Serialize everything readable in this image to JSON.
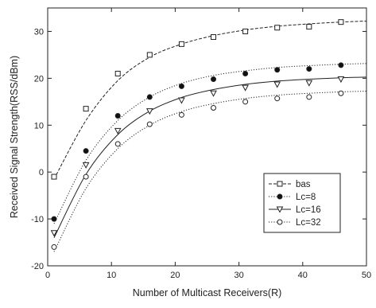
{
  "chart_data": {
    "type": "line",
    "xlabel": "Number of Multicast Receivers(R)",
    "ylabel": "Received Signal Strength(RSS/dBm)",
    "xlim": [
      0,
      50
    ],
    "ylim": [
      -20,
      35
    ],
    "xticks": [
      0,
      10,
      20,
      30,
      40,
      50
    ],
    "yticks": [
      -20,
      -10,
      0,
      10,
      20,
      30
    ],
    "grid": false,
    "legend_position": "right-center",
    "series": [
      {
        "name": "bas",
        "marker": "open-square",
        "line_style": "dashed",
        "x": [
          1,
          6,
          11,
          16,
          21,
          26,
          31,
          36,
          41,
          46
        ],
        "y": [
          -1,
          13.5,
          21,
          25,
          27.3,
          28.8,
          30,
          30.8,
          31,
          32
        ],
        "fit": [
          -1.5,
          11,
          19.5,
          24.5,
          27.3,
          29.1,
          30.3,
          31.1,
          31.6,
          32
        ]
      },
      {
        "name": "Lc=8",
        "marker": "filled-circle",
        "line_style": "dotted",
        "x": [
          1,
          6,
          11,
          16,
          21,
          26,
          31,
          36,
          41,
          46
        ],
        "y": [
          -10,
          4.5,
          12,
          16,
          18.3,
          19.8,
          21,
          21.8,
          22,
          22.8
        ],
        "fit": [
          -11,
          2.5,
          11,
          16,
          18.9,
          20.6,
          21.6,
          22.3,
          22.7,
          23
        ]
      },
      {
        "name": "Lc=16",
        "marker": "open-triangle-down",
        "line_style": "solid",
        "x": [
          1,
          6,
          11,
          16,
          21,
          26,
          31,
          36,
          41,
          46
        ],
        "y": [
          -13,
          1.5,
          8.8,
          13,
          15.3,
          16.8,
          18,
          18.7,
          19,
          19.8
        ],
        "fit": [
          -14,
          -0.5,
          8,
          13,
          15.9,
          17.6,
          18.7,
          19.4,
          19.8,
          20.1
        ]
      },
      {
        "name": "Lc=32",
        "marker": "open-circle",
        "line_style": "dotted",
        "x": [
          1,
          6,
          11,
          16,
          21,
          26,
          31,
          36,
          41,
          46
        ],
        "y": [
          -16,
          -1,
          6,
          10.2,
          12.2,
          13.7,
          15,
          15.7,
          16,
          16.8
        ],
        "fit": [
          -17,
          -3.5,
          5,
          10,
          12.9,
          14.6,
          15.7,
          16.4,
          16.8,
          17.1
        ]
      }
    ]
  }
}
